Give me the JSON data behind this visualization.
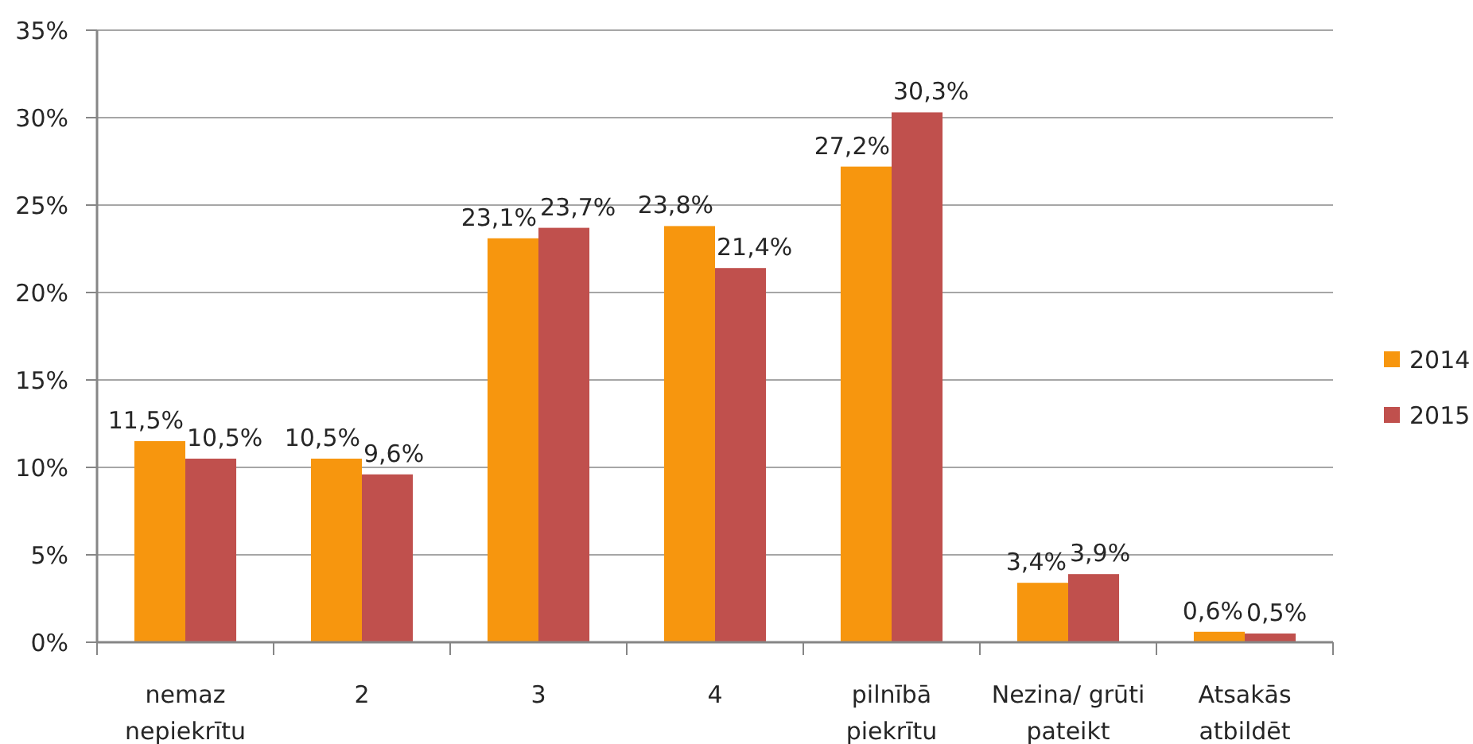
{
  "chart_data": {
    "type": "bar",
    "categories": [
      "nemaz nepiekrītu",
      "2",
      "3",
      "4",
      "pilnībā piekrītu",
      "Nezina/ grūti pateikt",
      "Atsakās atbildēt"
    ],
    "series": [
      {
        "name": "2014",
        "color": "#f7960e",
        "values": [
          11.5,
          10.5,
          23.1,
          23.8,
          27.2,
          3.4,
          0.6
        ],
        "value_labels": [
          "11,5%",
          "10,5%",
          "23,1%",
          "23,8%",
          "27,2%",
          "3,4%",
          "0,6%"
        ]
      },
      {
        "name": "2015",
        "color": "#c0504d",
        "values": [
          10.5,
          9.6,
          23.7,
          21.4,
          30.3,
          3.9,
          0.5
        ],
        "value_labels": [
          "10,5%",
          "9,6%",
          "23,7%",
          "21,4%",
          "30,3%",
          "3,9%",
          "0,5%"
        ]
      }
    ],
    "ylim": [
      0,
      35
    ],
    "yticks": [
      {
        "value": 0,
        "label": "0%"
      },
      {
        "value": 5,
        "label": "5%"
      },
      {
        "value": 10,
        "label": "10%"
      },
      {
        "value": 15,
        "label": "15%"
      },
      {
        "value": 20,
        "label": "20%"
      },
      {
        "value": 25,
        "label": "25%"
      },
      {
        "value": 30,
        "label": "30%"
      },
      {
        "value": 35,
        "label": "35%"
      }
    ],
    "grid": "y",
    "legend": "right"
  }
}
